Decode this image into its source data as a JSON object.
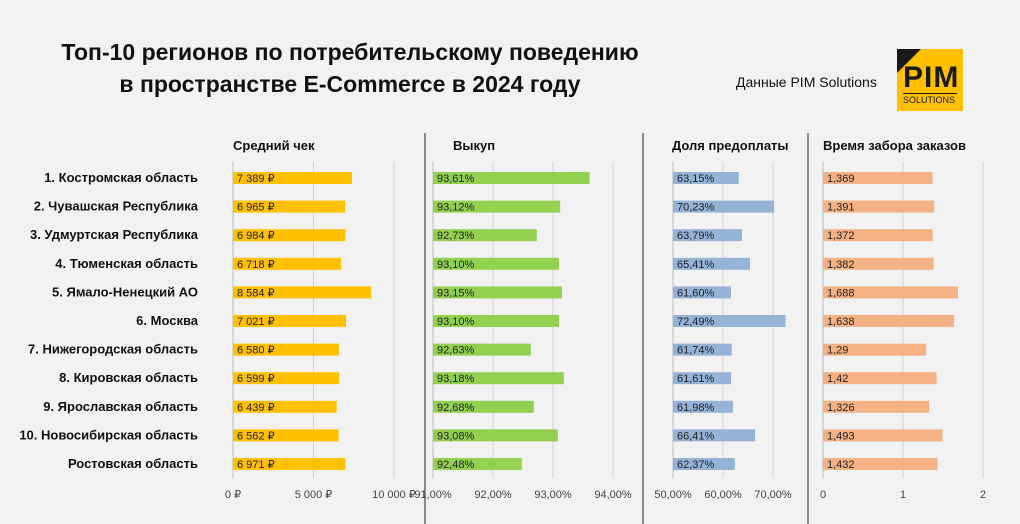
{
  "title_line1": "Топ-10 регионов по потребительскому поведению",
  "title_line2": "в пространстве E-Commerce в 2024 году",
  "source": "Данные PIM Solutions",
  "logo": {
    "main": "PIM",
    "sub": "SOLUTIONS"
  },
  "chart_data": {
    "type": "bar",
    "orientation": "horizontal",
    "categories": [
      "1. Костромская область",
      "2. Чувашская Республика",
      "3. Удмуртская Республика",
      "4. Тюменская область",
      "5. Ямало-Ненецкий АО",
      "6. Москва",
      "7. Нижегородская область",
      "8. Кировская область",
      "9. Ярославская область",
      "10. Новосибирская область",
      "Ростовская область"
    ],
    "panels": [
      {
        "name": "Средний чек",
        "color": "#ffc000",
        "values": [
          7389,
          6965,
          6984,
          6718,
          8584,
          7021,
          6580,
          6599,
          6439,
          6562,
          6971
        ],
        "labels": [
          "7 389 ₽",
          "6 965 ₽",
          "6 984 ₽",
          "6 718 ₽",
          "8 584 ₽",
          "7 021 ₽",
          "6 580 ₽",
          "6 599 ₽",
          "6 439 ₽",
          "6 562 ₽",
          "6 971 ₽"
        ],
        "xlim": [
          0,
          10000
        ],
        "ticks": [
          0,
          5000,
          10000
        ],
        "tick_labels": [
          "0 ₽",
          "5 000 ₽",
          "10 000 ₽"
        ]
      },
      {
        "name": "Выкуп",
        "color": "#92d050",
        "values": [
          93.61,
          93.12,
          92.73,
          93.1,
          93.15,
          93.1,
          92.63,
          93.18,
          92.68,
          93.08,
          92.48
        ],
        "labels": [
          "93,61%",
          "93,12%",
          "92,73%",
          "93,10%",
          "93,15%",
          "93,10%",
          "92,63%",
          "93,18%",
          "92,68%",
          "93,08%",
          "92,48%"
        ],
        "xlim": [
          91,
          94
        ],
        "ticks": [
          91,
          92,
          93,
          94
        ],
        "tick_labels": [
          "91,00%",
          "92,00%",
          "93,00%",
          "94,00%"
        ]
      },
      {
        "name": "Доля предоплаты",
        "color": "#95b3d7",
        "values": [
          63.15,
          70.23,
          63.79,
          65.41,
          61.6,
          72.49,
          61.74,
          61.61,
          61.98,
          66.41,
          62.37
        ],
        "labels": [
          "63,15%",
          "70,23%",
          "63,79%",
          "65,41%",
          "61,60%",
          "72,49%",
          "61,74%",
          "61,61%",
          "61,98%",
          "66,41%",
          "62,37%"
        ],
        "xlim": [
          50,
          80
        ],
        "ticks": [
          50,
          60,
          70
        ],
        "tick_labels": [
          "50,00%",
          "60,00%",
          "70,00%"
        ]
      },
      {
        "name": "Время забора заказов",
        "color": "#f4b183",
        "values": [
          1.369,
          1.391,
          1.372,
          1.382,
          1.688,
          1.638,
          1.29,
          1.42,
          1.326,
          1.493,
          1.432
        ],
        "labels": [
          "1,369",
          "1,391",
          "1,372",
          "1,382",
          "1,688",
          "1,638",
          "1,29",
          "1,42",
          "1,326",
          "1,493",
          "1,432"
        ],
        "xlim": [
          0,
          2
        ],
        "ticks": [
          0,
          1,
          2
        ],
        "tick_labels": [
          "0",
          "1",
          "2"
        ]
      }
    ],
    "grid": true
  }
}
